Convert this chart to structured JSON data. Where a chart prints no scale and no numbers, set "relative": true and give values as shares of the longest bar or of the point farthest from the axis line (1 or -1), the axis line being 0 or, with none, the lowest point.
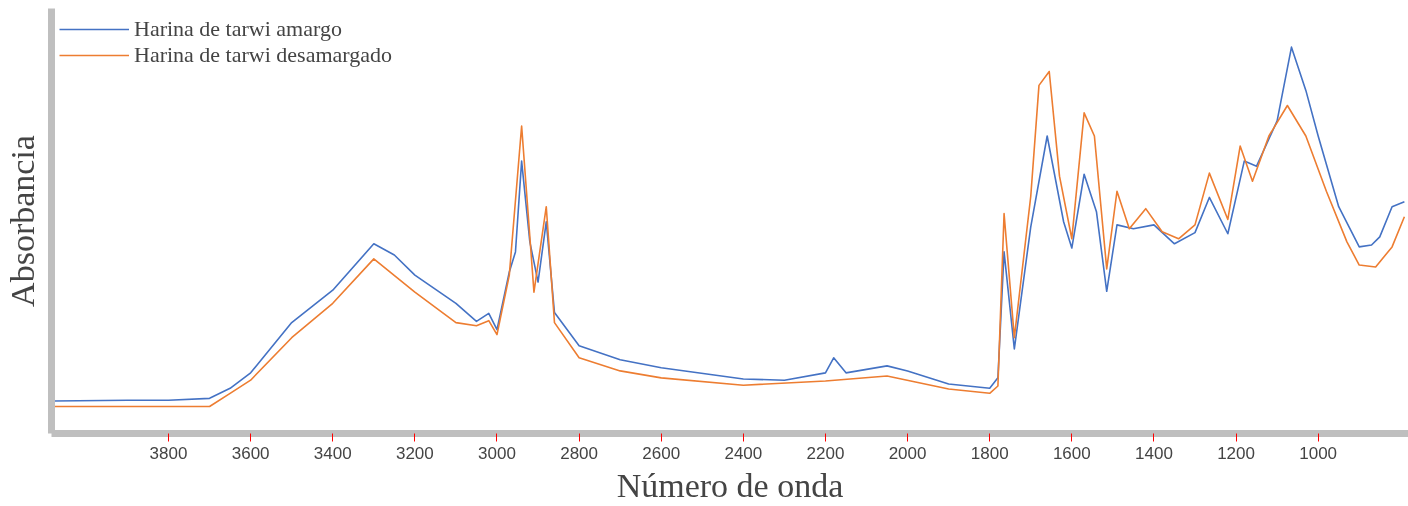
{
  "chart_data": {
    "type": "line",
    "relative": true,
    "xlabel": "Número de onda",
    "ylabel": "Absorbancia",
    "xlim": [
      4085,
      780
    ],
    "xticks": [
      3800,
      3600,
      3400,
      3200,
      3000,
      2800,
      2600,
      2400,
      2200,
      2000,
      1800,
      1600,
      1400,
      1200,
      1000
    ],
    "legend": "top left",
    "grid": false,
    "marker": "none",
    "line_style": "solid",
    "series": [
      {
        "name": "Harina de tarwi amargo",
        "color": "#4472c4",
        "x": [
          4080,
          3900,
          3800,
          3700,
          3650,
          3600,
          3500,
          3400,
          3300,
          3250,
          3200,
          3100,
          3050,
          3020,
          3000,
          2970,
          2955,
          2940,
          2920,
          2900,
          2880,
          2860,
          2800,
          2700,
          2600,
          2400,
          2300,
          2200,
          2180,
          2150,
          2050,
          2000,
          1900,
          1800,
          1780,
          1765,
          1740,
          1700,
          1660,
          1620,
          1600,
          1570,
          1540,
          1515,
          1490,
          1450,
          1400,
          1350,
          1300,
          1265,
          1220,
          1180,
          1150,
          1100,
          1065,
          1030,
          1000,
          950,
          900,
          870,
          850,
          820,
          790
        ],
        "values": [
          0.084,
          0.086,
          0.086,
          0.091,
          0.117,
          0.157,
          0.287,
          0.371,
          0.491,
          0.462,
          0.41,
          0.337,
          0.29,
          0.311,
          0.269,
          0.418,
          0.47,
          0.705,
          0.496,
          0.392,
          0.548,
          0.313,
          0.227,
          0.191,
          0.17,
          0.141,
          0.138,
          0.157,
          0.196,
          0.157,
          0.175,
          0.162,
          0.128,
          0.117,
          0.144,
          0.47,
          0.219,
          0.535,
          0.77,
          0.548,
          0.48,
          0.671,
          0.574,
          0.368,
          0.54,
          0.53,
          0.54,
          0.491,
          0.52,
          0.611,
          0.517,
          0.705,
          0.692,
          0.809,
          1.0,
          0.888,
          0.77,
          0.587,
          0.483,
          0.488,
          0.509,
          0.587,
          0.6
        ]
      },
      {
        "name": "Harina de tarwi desamargado",
        "color": "#ed7d31",
        "x": [
          4080,
          3700,
          3650,
          3600,
          3500,
          3400,
          3300,
          3200,
          3100,
          3050,
          3020,
          3000,
          2970,
          2940,
          2910,
          2880,
          2860,
          2800,
          2700,
          2600,
          2400,
          2200,
          2050,
          1900,
          1800,
          1780,
          1765,
          1740,
          1700,
          1680,
          1655,
          1630,
          1600,
          1570,
          1545,
          1515,
          1490,
          1460,
          1420,
          1380,
          1340,
          1300,
          1265,
          1220,
          1190,
          1160,
          1120,
          1075,
          1030,
          980,
          930,
          900,
          860,
          820,
          790
        ],
        "values": [
          0.07,
          0.07,
          0.104,
          0.138,
          0.248,
          0.337,
          0.452,
          0.366,
          0.287,
          0.279,
          0.292,
          0.256,
          0.41,
          0.796,
          0.366,
          0.587,
          0.287,
          0.196,
          0.162,
          0.144,
          0.125,
          0.136,
          0.149,
          0.115,
          0.104,
          0.123,
          0.569,
          0.248,
          0.614,
          0.901,
          0.937,
          0.666,
          0.504,
          0.83,
          0.77,
          0.426,
          0.627,
          0.53,
          0.582,
          0.522,
          0.504,
          0.54,
          0.674,
          0.554,
          0.744,
          0.653,
          0.77,
          0.849,
          0.77,
          0.627,
          0.496,
          0.436,
          0.431,
          0.483,
          0.561
        ]
      }
    ]
  }
}
